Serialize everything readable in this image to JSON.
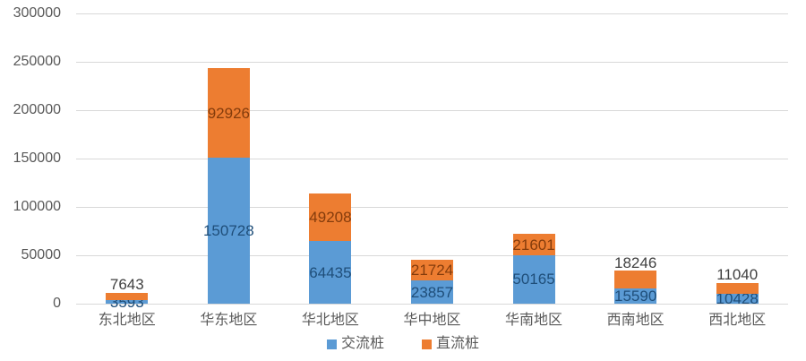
{
  "chart_data": {
    "type": "bar",
    "subtype": "stacked-column",
    "title": "",
    "xlabel": "",
    "ylabel": "",
    "categories": [
      "东北地区",
      "华东地区",
      "华北地区",
      "华中地区",
      "华南地区",
      "西南地区",
      "西北地区"
    ],
    "series": [
      {
        "name": "交流桩",
        "color": "#5B9BD5",
        "label_color": "#1F4E79",
        "values": [
          3593,
          150728,
          64435,
          23857,
          50165,
          15590,
          10428
        ]
      },
      {
        "name": "直流桩",
        "color": "#ED7D31",
        "label_color": "#843C0C",
        "outside_label_color": "#404040",
        "values": [
          7643,
          92926,
          49208,
          21724,
          21601,
          18246,
          11040
        ]
      }
    ],
    "ylim": [
      0,
      300000
    ],
    "ytick_step": 50000,
    "yticks": [
      "0",
      "50000",
      "100000",
      "150000",
      "200000",
      "250000",
      "300000"
    ],
    "grid": true,
    "gridline_color": "#d9d9d9",
    "axis_text_color": "#595959",
    "legend_position": "bottom",
    "data_labels": true
  }
}
